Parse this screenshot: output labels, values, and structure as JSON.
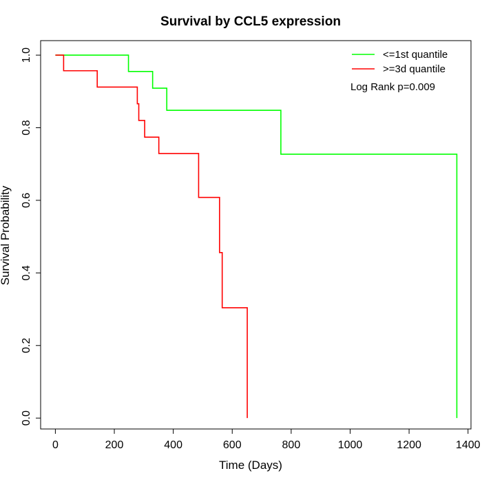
{
  "chart_data": {
    "type": "line",
    "step": true,
    "title": "Survival by CCL5 expression",
    "xlabel": "Time (Days)",
    "ylabel": "Survival Probability",
    "xlim": [
      -50,
      1410
    ],
    "ylim": [
      -0.03,
      1.04
    ],
    "xticks": [
      0,
      200,
      400,
      600,
      800,
      1000,
      1200,
      1400
    ],
    "xtick_labels": [
      "0",
      "200",
      "400",
      "600",
      "800",
      "1000",
      "1200",
      "1400"
    ],
    "yticks": [
      0.0,
      0.2,
      0.4,
      0.6,
      0.8,
      1.0
    ],
    "ytick_labels": [
      "0.0",
      "0.2",
      "0.4",
      "0.6",
      "0.8",
      "1.0"
    ],
    "grid": false,
    "legend": "top-right",
    "annotation": "Log Rank p=0.009",
    "series": [
      {
        "name": "<=1st quantile",
        "color": "#00ff00",
        "x": [
          0,
          248,
          330,
          378,
          765,
          1362
        ],
        "y": [
          1.0,
          0.955,
          0.909,
          0.848,
          0.727,
          0.0
        ]
      },
      {
        "name": ">=3d quantile",
        "color": "#ff0000",
        "x": [
          0,
          28,
          142,
          278,
          283,
          303,
          351,
          486,
          557,
          566,
          651
        ],
        "y": [
          1.0,
          0.957,
          0.912,
          0.866,
          0.82,
          0.774,
          0.729,
          0.608,
          0.456,
          0.304,
          0.0
        ]
      }
    ]
  }
}
